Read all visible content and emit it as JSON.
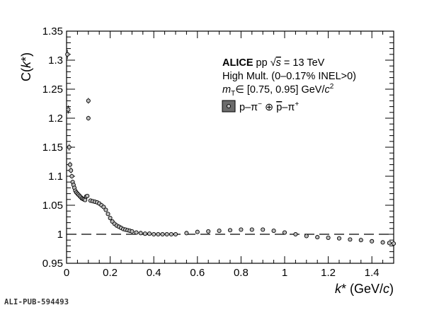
{
  "chart_data": {
    "type": "scatter",
    "xlabel": "k* (GeV/c)",
    "ylabel": "C(k*)",
    "xlim": [
      0,
      1.5
    ],
    "ylim": [
      0.95,
      1.35
    ],
    "x_ticks": [
      "0",
      "0.2",
      "0.4",
      "0.6",
      "0.8",
      "1",
      "1.2",
      "1.4"
    ],
    "x_tick_values": [
      0,
      0.2,
      0.4,
      0.6,
      0.8,
      1.0,
      1.2,
      1.4
    ],
    "y_ticks": [
      "0.95",
      "1",
      "1.05",
      "1.1",
      "1.15",
      "1.2",
      "1.25",
      "1.3",
      "1.35"
    ],
    "y_tick_values": [
      0.95,
      1.0,
      1.05,
      1.1,
      1.15,
      1.2,
      1.25,
      1.3,
      1.35
    ],
    "grid": false,
    "reference_line": {
      "y": 1.0,
      "style": "dashed"
    },
    "annotations": {
      "experiment": "ALICE",
      "system": "pp √s = 13 TeV",
      "selection": "High Mult. (0–0.17% INEL>0)",
      "mt_range": "mT∈ [0.75, 0.95] GeV/c2"
    },
    "legend": {
      "placement": "top-right",
      "entries": [
        "p–π⁻ ⊕ p̄–π⁺"
      ]
    },
    "series": [
      {
        "name": "p–π⁻ ⊕ p̄–π⁺",
        "marker": "open-circle",
        "x": [
          0.004,
          0.008,
          0.012,
          0.016,
          0.02,
          0.024,
          0.028,
          0.032,
          0.036,
          0.04,
          0.045,
          0.05,
          0.055,
          0.06,
          0.065,
          0.07,
          0.075,
          0.08,
          0.085,
          0.09,
          0.095,
          0.1,
          0.1,
          0.11,
          0.12,
          0.13,
          0.14,
          0.15,
          0.16,
          0.17,
          0.18,
          0.19,
          0.2,
          0.21,
          0.22,
          0.23,
          0.24,
          0.25,
          0.26,
          0.27,
          0.28,
          0.29,
          0.3,
          0.32,
          0.34,
          0.36,
          0.38,
          0.4,
          0.42,
          0.44,
          0.46,
          0.48,
          0.5,
          0.55,
          0.6,
          0.65,
          0.7,
          0.75,
          0.8,
          0.85,
          0.9,
          0.95,
          1.0,
          1.05,
          1.1,
          1.15,
          1.2,
          1.25,
          1.3,
          1.35,
          1.4,
          1.45,
          1.48,
          1.5
        ],
        "y": [
          1.31,
          1.215,
          1.15,
          1.12,
          1.11,
          1.1,
          1.09,
          1.085,
          1.08,
          1.075,
          1.072,
          1.07,
          1.068,
          1.066,
          1.064,
          1.062,
          1.061,
          1.06,
          1.059,
          1.065,
          1.066,
          1.23,
          1.2,
          1.058,
          1.057,
          1.056,
          1.055,
          1.053,
          1.05,
          1.047,
          1.042,
          1.035,
          1.028,
          1.022,
          1.018,
          1.015,
          1.013,
          1.011,
          1.009,
          1.008,
          1.007,
          1.006,
          1.005,
          1.003,
          1.002,
          1.001,
          1.001,
          1.0,
          1.0,
          1.0,
          1.0,
          1.0,
          1.0,
          1.002,
          1.004,
          1.005,
          1.006,
          1.007,
          1.008,
          1.008,
          1.008,
          1.006,
          1.003,
          1.0,
          0.997,
          0.995,
          0.994,
          0.993,
          0.991,
          0.99,
          0.988,
          0.986,
          0.985,
          0.984
        ],
        "yerr": [
          0.008,
          0.007,
          0.006,
          0.005,
          0.005,
          0.004,
          0.004,
          0.004,
          0.003,
          0.003,
          0.003,
          0.003,
          0.003,
          0.003,
          0.003,
          0.003,
          0.002,
          0.002,
          0.002,
          0.003,
          0.003,
          0.005,
          0.004,
          0.002,
          0.002,
          0.002,
          0.002,
          0.002,
          0.002,
          0.002,
          0.002,
          0.002,
          0.002,
          0.002,
          0.002,
          0.002,
          0.002,
          0.002,
          0.002,
          0.002,
          0.002,
          0.002,
          0.002,
          0.002,
          0.002,
          0.002,
          0.002,
          0.002,
          0.002,
          0.002,
          0.002,
          0.002,
          0.002,
          0.002,
          0.002,
          0.002,
          0.002,
          0.002,
          0.002,
          0.002,
          0.002,
          0.002,
          0.002,
          0.002,
          0.002,
          0.002,
          0.002,
          0.002,
          0.002,
          0.002,
          0.002,
          0.002,
          0.002,
          0.002
        ]
      }
    ]
  },
  "footer": {
    "publication_id": "ALI-PUB-594493"
  }
}
